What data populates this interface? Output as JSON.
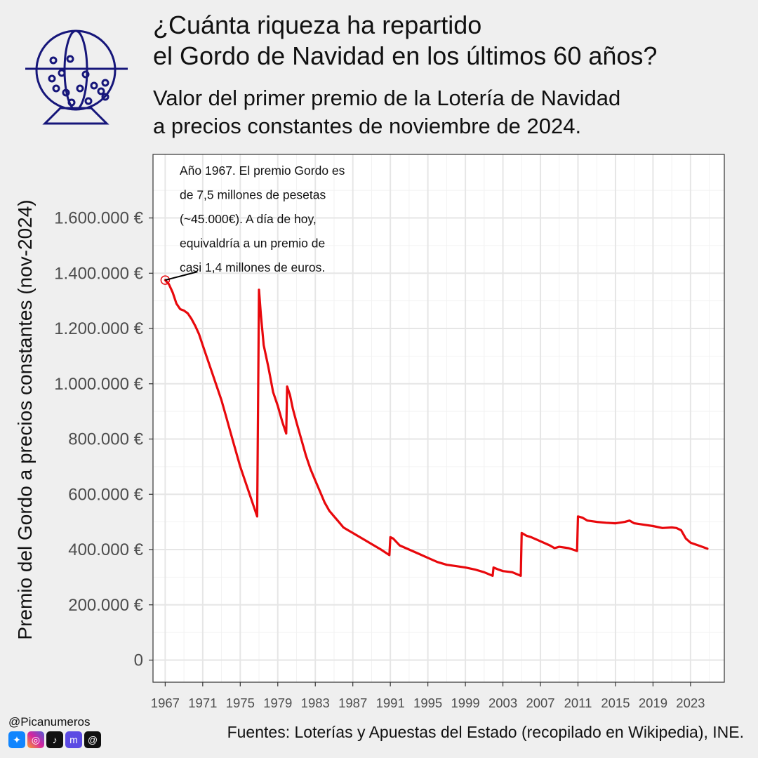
{
  "title_lines": [
    "¿Cuánta riqueza ha repartido",
    "el Gordo de Navidad en los últimos 60 años?"
  ],
  "subtitle_lines": [
    "Valor del primer premio de la Lotería de Navidad",
    "a precios constantes de noviembre de 2024."
  ],
  "handle": "@Picanumeros",
  "social_icons": [
    "bluesky-icon",
    "instagram-icon",
    "tiktok-icon",
    "mastodon-icon",
    "threads-icon"
  ],
  "source": "Fuentes: Loterías y Apuestas del Estado (recopilado en Wikipedia), INE.",
  "colors": {
    "line": "#e8080c",
    "logo": "#16167a",
    "background": "#efefef",
    "panel": "#ffffff",
    "grid": "#e6e6e6"
  },
  "chart_data": {
    "type": "line",
    "title": "",
    "xlabel": "",
    "ylabel": "Premio del Gordo a precios constantes (nov-2024)",
    "xlim": [
      1965.7,
      2026.6
    ],
    "ylim": [
      -80000,
      1830000
    ],
    "x_ticks": [
      1967,
      1971,
      1975,
      1979,
      1983,
      1987,
      1991,
      1995,
      1999,
      2003,
      2007,
      2011,
      2015,
      2019,
      2023
    ],
    "y_ticks": [
      0,
      200000,
      400000,
      600000,
      800000,
      1000000,
      1200000,
      1400000,
      1600000
    ],
    "y_tick_labels": [
      "0",
      "200.000 €",
      "400.000 €",
      "600.000 €",
      "800.000 €",
      "1.000.000 €",
      "1.200.000 €",
      "1.400.000 €",
      "1.600.000 €"
    ],
    "grid": true,
    "legend": "none",
    "series": [
      {
        "x": [
          1967.0,
          1967.4,
          1967.8,
          1968.2,
          1968.6,
          1969.0,
          1969.4,
          1969.8,
          1970.2,
          1970.6,
          1971.0,
          1971.5,
          1972.0,
          1972.5,
          1973.0,
          1973.5,
          1974.0,
          1974.5,
          1975.0,
          1975.5,
          1976.0,
          1976.4,
          1976.6,
          1976.8,
          1977.0,
          1977.2,
          1977.5,
          1978.0,
          1978.5,
          1979.0,
          1979.5,
          1979.9,
          1980.0,
          1980.3,
          1980.6,
          1981.0,
          1981.5,
          1982.0,
          1982.5,
          1983.0,
          1983.5,
          1984.0,
          1984.5,
          1985.0,
          1985.5,
          1986.0,
          1986.5,
          1987.0,
          1988.0,
          1989.0,
          1990.0,
          1990.9,
          1991.0,
          1991.3,
          1992.0,
          1993.0,
          1994.0,
          1995.0,
          1996.0,
          1997.0,
          1998.0,
          1999.0,
          2000.0,
          2001.0,
          2001.9,
          2002.0,
          2002.5,
          2003.0,
          2004.0,
          2004.9,
          2005.0,
          2005.5,
          2006.0,
          2007.0,
          2008.0,
          2008.5,
          2009.0,
          2010.0,
          2010.9,
          2011.0,
          2011.5,
          2012.0,
          2013.0,
          2014.0,
          2015.0,
          2016.0,
          2016.5,
          2017.0,
          2018.0,
          2019.0,
          2020.0,
          2021.0,
          2021.5,
          2022.0,
          2022.5,
          2023.0,
          2024.0,
          2024.8
        ],
        "y": [
          1375000,
          1360000,
          1330000,
          1290000,
          1270000,
          1265000,
          1255000,
          1235000,
          1210000,
          1180000,
          1140000,
          1090000,
          1040000,
          990000,
          940000,
          880000,
          820000,
          760000,
          700000,
          650000,
          600000,
          560000,
          540000,
          520000,
          1340000,
          1250000,
          1140000,
          1060000,
          970000,
          920000,
          860000,
          820000,
          990000,
          960000,
          910000,
          860000,
          800000,
          740000,
          690000,
          650000,
          610000,
          570000,
          540000,
          520000,
          500000,
          480000,
          470000,
          460000,
          440000,
          420000,
          400000,
          380000,
          445000,
          440000,
          415000,
          400000,
          385000,
          370000,
          355000,
          345000,
          340000,
          335000,
          328000,
          318000,
          305000,
          335000,
          328000,
          322000,
          318000,
          305000,
          460000,
          450000,
          445000,
          430000,
          415000,
          405000,
          410000,
          405000,
          395000,
          520000,
          515000,
          505000,
          500000,
          497000,
          495000,
          500000,
          505000,
          495000,
          490000,
          485000,
          478000,
          480000,
          478000,
          470000,
          440000,
          425000,
          413000,
          403000
        ]
      }
    ],
    "annotation": {
      "x": 1967,
      "y": 1375000,
      "lines": [
        "Año 1967. El premio Gordo es",
        "de 7,5 millones de pesetas",
        "(~45.000€). A día de hoy,",
        "equivaldría a un premio de",
        "casi 1,4 millones de euros."
      ]
    }
  }
}
